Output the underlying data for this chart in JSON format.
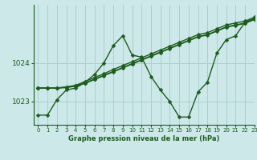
{
  "bg_color": "#cce8e8",
  "grid_color": "#aad0d0",
  "line_color": "#1e5c1e",
  "title": "Graphe pression niveau de la mer (hPa)",
  "xlim": [
    -0.5,
    23
  ],
  "ylim": [
    1022.4,
    1025.5
  ],
  "yticks": [
    1023,
    1024
  ],
  "xtick_labels": [
    "0",
    "1",
    "2",
    "3",
    "4",
    "5",
    "6",
    "7",
    "8",
    "9",
    "10",
    "11",
    "12",
    "13",
    "14",
    "15",
    "16",
    "17",
    "18",
    "19",
    "20",
    "21",
    "22",
    "23"
  ],
  "series": [
    [
      1022.65,
      1022.65,
      1023.05,
      1023.3,
      1023.35,
      1023.5,
      1023.7,
      1024.0,
      1024.45,
      1024.7,
      1024.2,
      1024.15,
      1023.65,
      1023.3,
      1023.0,
      1022.6,
      1022.6,
      1023.25,
      1023.5,
      1024.25,
      1024.6,
      1024.7,
      1025.05,
      1025.15
    ],
    [
      1023.35,
      1023.35,
      1023.35,
      1023.38,
      1023.42,
      1023.52,
      1023.62,
      1023.72,
      1023.83,
      1023.93,
      1024.03,
      1024.13,
      1024.23,
      1024.33,
      1024.43,
      1024.53,
      1024.63,
      1024.73,
      1024.78,
      1024.88,
      1024.98,
      1025.03,
      1025.08,
      1025.18
    ],
    [
      1023.35,
      1023.35,
      1023.35,
      1023.37,
      1023.41,
      1023.48,
      1023.58,
      1023.68,
      1023.78,
      1023.88,
      1023.98,
      1024.08,
      1024.18,
      1024.28,
      1024.38,
      1024.48,
      1024.58,
      1024.68,
      1024.73,
      1024.83,
      1024.93,
      1024.98,
      1025.03,
      1025.13
    ],
    [
      1023.35,
      1023.35,
      1023.35,
      1023.36,
      1023.4,
      1023.47,
      1023.57,
      1023.67,
      1023.77,
      1023.87,
      1023.97,
      1024.07,
      1024.17,
      1024.27,
      1024.37,
      1024.47,
      1024.57,
      1024.67,
      1024.72,
      1024.82,
      1024.92,
      1024.97,
      1025.02,
      1025.12
    ]
  ],
  "marker": "D",
  "marker_size": 2.5,
  "line_width": 1.0,
  "title_fontsize": 6.0,
  "ytick_fontsize": 6.5,
  "xtick_fontsize": 5.0
}
